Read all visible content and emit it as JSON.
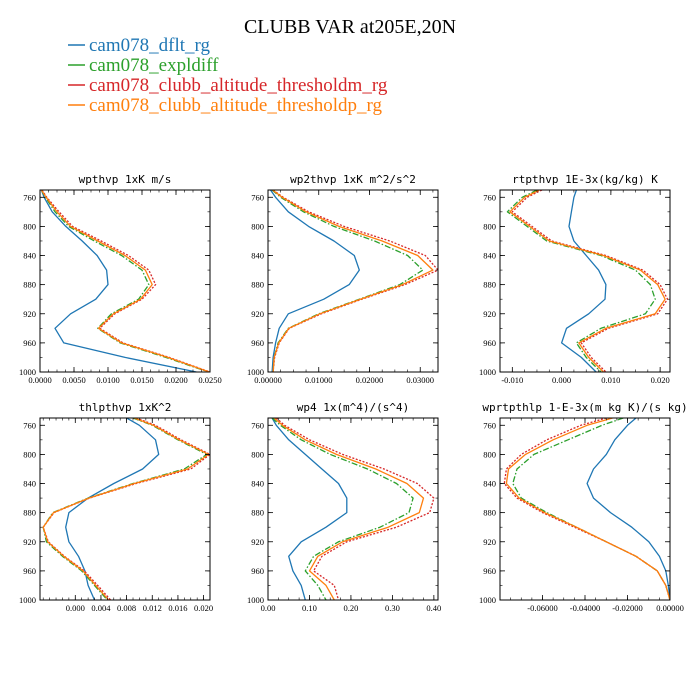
{
  "figure": {
    "title": "CLUBB VAR at205E,20N",
    "legend": [
      {
        "label": "cam078_dflt_rg",
        "color": "#1f77b4",
        "dash": "solid"
      },
      {
        "label": "cam078_expldiff",
        "color": "#2ca02c",
        "dash": "dashdot"
      },
      {
        "label": "cam078_clubb_altitude_thresholdm_rg",
        "color": "#d62728",
        "dash": "dotted"
      },
      {
        "label": "cam078_clubb_altitude_thresholdp_rg",
        "color": "#ff7f0e",
        "dash": "solid"
      }
    ]
  },
  "chart_data": [
    {
      "type": "line",
      "title": "wpthvp  1xK m/s",
      "xlim": [
        0,
        0.025
      ],
      "ylim": [
        1000,
        750
      ],
      "y_reversed": true,
      "xticks": [
        0,
        0.005,
        0.01,
        0.015,
        0.02,
        0.025
      ],
      "xtick_labels": [
        "0.0000",
        "0.0050",
        "0.0100",
        "0.0150",
        "0.0200",
        "0.0250"
      ],
      "yticks": [
        760,
        800,
        840,
        880,
        920,
        960,
        1000
      ],
      "y": [
        750,
        760,
        780,
        800,
        820,
        840,
        860,
        880,
        900,
        920,
        940,
        960,
        980,
        1000
      ],
      "series": [
        {
          "name": "cam078_dflt_rg",
          "x": [
            0.0002,
            0.0006,
            0.0018,
            0.0038,
            0.0062,
            0.0084,
            0.0098,
            0.01,
            0.0082,
            0.0045,
            0.0022,
            0.0035,
            0.0125,
            0.023
          ]
        },
        {
          "name": "cam078_expldiff",
          "x": [
            0.0002,
            0.0008,
            0.0022,
            0.0042,
            0.008,
            0.012,
            0.015,
            0.016,
            0.0145,
            0.0105,
            0.0085,
            0.0118,
            0.0185,
            0.0248
          ]
        },
        {
          "name": "cam078_clubb_altitude_thresholdm_rg",
          "x": [
            0.0003,
            0.001,
            0.0028,
            0.0048,
            0.009,
            0.013,
            0.016,
            0.017,
            0.015,
            0.011,
            0.0088,
            0.0122,
            0.019,
            0.025
          ]
        },
        {
          "name": "cam078_clubb_altitude_thresholdp_rg",
          "x": [
            0.0002,
            0.0009,
            0.0025,
            0.0045,
            0.0085,
            0.0125,
            0.0155,
            0.0165,
            0.0148,
            0.0108,
            0.0086,
            0.012,
            0.0188,
            0.0249
          ]
        }
      ]
    },
    {
      "type": "line",
      "title": "wp2thvp  1xK m^2/s^2",
      "xlim": [
        0,
        0.0335
      ],
      "ylim": [
        1000,
        750
      ],
      "y_reversed": true,
      "xticks": [
        0,
        0.01,
        0.02,
        0.03
      ],
      "xtick_labels": [
        "0.00000",
        "0.01000",
        "0.02000",
        "0.03000"
      ],
      "yticks": [
        760,
        800,
        840,
        880,
        920,
        960,
        1000
      ],
      "y": [
        750,
        760,
        780,
        800,
        820,
        840,
        860,
        880,
        900,
        920,
        940,
        960,
        980,
        1000
      ],
      "series": [
        {
          "name": "cam078_dflt_rg",
          "x": [
            0.0005,
            0.0015,
            0.004,
            0.008,
            0.013,
            0.017,
            0.018,
            0.016,
            0.011,
            0.004,
            0.0022,
            0.0015,
            0.001,
            0.0008
          ]
        },
        {
          "name": "cam078_expldiff",
          "x": [
            0.0008,
            0.0025,
            0.007,
            0.013,
            0.021,
            0.0275,
            0.0305,
            0.026,
            0.018,
            0.01,
            0.004,
            0.002,
            0.0012,
            0.001
          ]
        },
        {
          "name": "cam078_clubb_altitude_thresholdm_rg",
          "x": [
            0.001,
            0.003,
            0.008,
            0.015,
            0.024,
            0.031,
            0.0335,
            0.027,
            0.0185,
            0.0105,
            0.0042,
            0.0022,
            0.0013,
            0.001
          ]
        },
        {
          "name": "cam078_clubb_altitude_thresholdp_rg",
          "x": [
            0.0009,
            0.0028,
            0.0075,
            0.014,
            0.0225,
            0.0295,
            0.0325,
            0.0265,
            0.0182,
            0.0102,
            0.0041,
            0.0021,
            0.0012,
            0.001
          ]
        }
      ]
    },
    {
      "type": "line",
      "title": "rtpthvp  1E-3x(kg/kg) K",
      "xlim": [
        -0.0125,
        0.022
      ],
      "ylim": [
        1000,
        750
      ],
      "y_reversed": true,
      "xticks": [
        -0.01,
        0,
        0.01,
        0.02
      ],
      "xtick_labels": [
        "-0.010",
        "0.000",
        "0.010",
        "0.020"
      ],
      "yticks": [
        760,
        800,
        840,
        880,
        920,
        960,
        1000
      ],
      "y": [
        750,
        760,
        780,
        800,
        820,
        840,
        860,
        880,
        900,
        920,
        940,
        960,
        980,
        1000
      ],
      "series": [
        {
          "name": "cam078_dflt_rg",
          "x": [
            0.003,
            0.0025,
            0.002,
            0.0015,
            0.0025,
            0.005,
            0.0075,
            0.009,
            0.0088,
            0.0055,
            0.001,
            0.0,
            0.004,
            0.007
          ]
        },
        {
          "name": "cam078_expldiff",
          "x": [
            -0.005,
            -0.008,
            -0.011,
            -0.007,
            -0.003,
            0.008,
            0.015,
            0.018,
            0.019,
            0.017,
            0.008,
            0.003,
            0.005,
            0.008
          ]
        },
        {
          "name": "cam078_clubb_altitude_thresholdm_rg",
          "x": [
            -0.004,
            -0.007,
            -0.01,
            -0.006,
            -0.002,
            0.009,
            0.0165,
            0.02,
            0.0215,
            0.0195,
            0.0095,
            0.004,
            0.006,
            0.009
          ]
        },
        {
          "name": "cam078_clubb_altitude_thresholdp_rg",
          "x": [
            -0.0045,
            -0.0075,
            -0.0105,
            -0.0065,
            -0.0025,
            0.0085,
            0.016,
            0.0195,
            0.021,
            0.019,
            0.009,
            0.0035,
            0.0055,
            0.0085
          ]
        }
      ]
    },
    {
      "type": "line",
      "title": "thlpthvp  1xK^2",
      "xlim": [
        -0.0055,
        0.021
      ],
      "ylim": [
        1000,
        750
      ],
      "y_reversed": true,
      "xticks": [
        0,
        0.004,
        0.008,
        0.012,
        0.016,
        0.02
      ],
      "xtick_labels": [
        "0.000",
        "0.004",
        "0.008",
        "0.012",
        "0.016",
        "0.020"
      ],
      "yticks": [
        760,
        800,
        840,
        880,
        920,
        960,
        1000
      ],
      "y": [
        750,
        760,
        780,
        800,
        820,
        840,
        860,
        880,
        900,
        920,
        940,
        960,
        980,
        1000
      ],
      "series": [
        {
          "name": "cam078_dflt_rg",
          "x": [
            0.008,
            0.01,
            0.0125,
            0.013,
            0.0105,
            0.006,
            0.002,
            -0.001,
            -0.0015,
            -0.001,
            0.0005,
            0.0015,
            0.002,
            0.003
          ]
        },
        {
          "name": "cam078_expldiff",
          "x": [
            0.009,
            0.012,
            0.016,
            0.0205,
            0.017,
            0.009,
            0.002,
            -0.0035,
            -0.005,
            -0.0045,
            -0.002,
            0.001,
            0.003,
            0.005
          ]
        },
        {
          "name": "cam078_clubb_altitude_thresholdm_rg",
          "x": [
            0.0095,
            0.0125,
            0.0165,
            0.021,
            0.018,
            0.0095,
            0.0022,
            -0.0033,
            -0.005,
            -0.0042,
            -0.0017,
            0.0014,
            0.0035,
            0.0055
          ]
        },
        {
          "name": "cam078_clubb_altitude_thresholdp_rg",
          "x": [
            0.0092,
            0.0122,
            0.0162,
            0.0208,
            0.0175,
            0.0092,
            0.0021,
            -0.0034,
            -0.005,
            -0.0043,
            -0.0018,
            0.0012,
            0.0032,
            0.0052
          ]
        }
      ]
    },
    {
      "type": "line",
      "title": "wp4  1x(m^4)/(s^4)",
      "xlim": [
        0,
        0.41
      ],
      "ylim": [
        1000,
        750
      ],
      "y_reversed": true,
      "xticks": [
        0,
        0.1,
        0.2,
        0.3,
        0.4
      ],
      "xtick_labels": [
        "0.00",
        "0.10",
        "0.20",
        "0.30",
        "0.40"
      ],
      "yticks": [
        760,
        800,
        840,
        880,
        920,
        960,
        1000
      ],
      "y": [
        750,
        760,
        780,
        800,
        820,
        840,
        860,
        880,
        900,
        920,
        940,
        960,
        980,
        1000
      ],
      "series": [
        {
          "name": "cam078_dflt_rg",
          "x": [
            0.01,
            0.02,
            0.05,
            0.09,
            0.13,
            0.17,
            0.19,
            0.19,
            0.14,
            0.08,
            0.05,
            0.06,
            0.08,
            0.09
          ]
        },
        {
          "name": "cam078_expldiff",
          "x": [
            0.01,
            0.03,
            0.08,
            0.15,
            0.24,
            0.31,
            0.35,
            0.34,
            0.27,
            0.17,
            0.11,
            0.09,
            0.12,
            0.14
          ]
        },
        {
          "name": "cam078_clubb_altitude_thresholdm_rg",
          "x": [
            0.02,
            0.04,
            0.1,
            0.18,
            0.28,
            0.36,
            0.4,
            0.39,
            0.31,
            0.19,
            0.13,
            0.11,
            0.16,
            0.17
          ]
        },
        {
          "name": "cam078_clubb_altitude_thresholdp_rg",
          "x": [
            0.015,
            0.035,
            0.09,
            0.165,
            0.26,
            0.335,
            0.375,
            0.365,
            0.29,
            0.18,
            0.12,
            0.1,
            0.14,
            0.16
          ]
        }
      ]
    },
    {
      "type": "line",
      "title": "wprtpthlp  1-E-3x(m kg K)/(s kg)",
      "xlim": [
        -0.08,
        0
      ],
      "ylim": [
        1000,
        750
      ],
      "y_reversed": true,
      "xticks": [
        -0.06,
        -0.04,
        -0.02,
        0
      ],
      "xtick_labels": [
        "-0.06000",
        "-0.04000",
        "-0.02000",
        "0.00000"
      ],
      "yticks": [
        760,
        800,
        840,
        880,
        920,
        960,
        1000
      ],
      "y": [
        750,
        760,
        780,
        800,
        820,
        840,
        860,
        880,
        900,
        920,
        940,
        960,
        980,
        1000
      ],
      "series": [
        {
          "name": "cam078_dflt_rg",
          "x": [
            -0.016,
            -0.02,
            -0.026,
            -0.03,
            -0.036,
            -0.039,
            -0.036,
            -0.028,
            -0.018,
            -0.01,
            -0.005,
            -0.002,
            -0.0008,
            0
          ]
        },
        {
          "name": "cam078_expldiff",
          "x": [
            -0.022,
            -0.032,
            -0.048,
            -0.064,
            -0.072,
            -0.074,
            -0.07,
            -0.058,
            -0.044,
            -0.03,
            -0.016,
            -0.006,
            -0.002,
            0
          ]
        },
        {
          "name": "cam078_clubb_altitude_thresholdm_rg",
          "x": [
            -0.03,
            -0.042,
            -0.058,
            -0.07,
            -0.077,
            -0.078,
            -0.072,
            -0.06,
            -0.045,
            -0.03,
            -0.016,
            -0.006,
            -0.002,
            0
          ]
        },
        {
          "name": "cam078_clubb_altitude_thresholdp_rg",
          "x": [
            -0.027,
            -0.039,
            -0.055,
            -0.068,
            -0.076,
            -0.077,
            -0.071,
            -0.059,
            -0.044,
            -0.03,
            -0.016,
            -0.006,
            -0.002,
            0
          ]
        }
      ]
    }
  ]
}
